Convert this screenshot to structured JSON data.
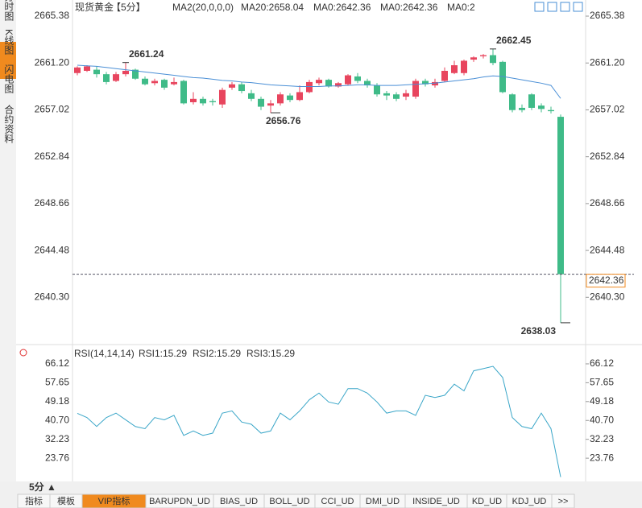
{
  "sidebar": [
    "分时图",
    "K线图",
    "闪电图",
    "合约资料"
  ],
  "header": {
    "name": "现货黄金",
    "period": "【5分】",
    "ma_setting": "MA2(20,0,0,0)",
    "ma20": "MA20:2658.04",
    "ma0a": "MA0:2642.36",
    "ma0b": "MA0:2642.36",
    "ma0c": "MA0:2"
  },
  "rsi_header": {
    "name": "RSI(14,14,14)",
    "rsi1": "RSI1:15.29",
    "rsi2": "RSI2:15.29",
    "rsi3": "RSI3:15.29"
  },
  "footer": {
    "period": "5分 ▲",
    "tabs": [
      "指标",
      "模板",
      "VIP指标",
      "BARUPDN_UD",
      "BIAS_UD",
      "BOLL_UD",
      "CCI_UD",
      "DMI_UD",
      "INSIDE_UD",
      "KD_UD",
      "KDJ_UD",
      ">>"
    ]
  },
  "chart_data": [
    {
      "type": "candlestick",
      "up_color": "#e8455e",
      "down_color": "#3fbb88",
      "open": [
        2660.3,
        2660.5,
        2660.6,
        2660.2,
        2659.6,
        2660.2,
        2660.6,
        2659.8,
        2659.4,
        2659.7,
        2659.3,
        2659.6,
        2657.7,
        2658.0,
        2657.8,
        2657.5,
        2659.0,
        2659.3,
        2658.5,
        2658.0,
        2657.4,
        2657.6,
        2658.3,
        2657.9,
        2658.6,
        2659.4,
        2659.7,
        2659.1,
        2659.3,
        2660.0,
        2659.6,
        2659.2,
        2658.5,
        2658.4,
        2658.2,
        2658.2,
        2659.6,
        2659.2,
        2659.6,
        2660.3,
        2660.3,
        2661.5,
        2661.8,
        2661.9,
        2661.3,
        2658.4,
        2657.2,
        2658.4,
        2657.4,
        2657.0,
        2656.4
      ],
      "high": [
        2660.9,
        2661.0,
        2660.9,
        2660.4,
        2660.4,
        2661.24,
        2660.7,
        2660.0,
        2659.8,
        2659.8,
        2659.9,
        2659.7,
        2658.6,
        2658.2,
        2658.0,
        2659.0,
        2659.5,
        2659.5,
        2658.8,
        2658.2,
        2657.9,
        2658.6,
        2658.5,
        2659.2,
        2659.7,
        2659.9,
        2659.8,
        2659.5,
        2660.2,
        2660.3,
        2659.8,
        2659.4,
        2658.7,
        2658.6,
        2658.8,
        2659.8,
        2659.8,
        2659.8,
        2660.8,
        2661.4,
        2661.5,
        2661.8,
        2662.0,
        2662.45,
        2661.4,
        2658.5,
        2657.5,
        2658.5,
        2657.6,
        2657.3,
        2656.6
      ],
      "low": [
        2660.1,
        2660.4,
        2659.9,
        2659.3,
        2659.5,
        2660.0,
        2659.7,
        2659.2,
        2659.2,
        2658.8,
        2659.2,
        2657.5,
        2657.5,
        2657.4,
        2657.4,
        2657.2,
        2658.8,
        2658.5,
        2657.8,
        2657.0,
        2656.76,
        2657.4,
        2657.7,
        2657.8,
        2658.5,
        2659.2,
        2659.0,
        2659.0,
        2659.2,
        2659.4,
        2659.0,
        2658.2,
        2657.9,
        2657.8,
        2657.9,
        2658.0,
        2659.1,
        2659.0,
        2659.5,
        2660.2,
        2660.1,
        2661.3,
        2661.6,
        2661.0,
        2658.5,
        2656.8,
        2656.8,
        2657.0,
        2656.8,
        2656.7,
        2638.03
      ],
      "close": [
        2660.8,
        2660.9,
        2660.2,
        2659.5,
        2660.2,
        2660.5,
        2659.8,
        2659.3,
        2659.6,
        2659.0,
        2659.5,
        2657.6,
        2658.0,
        2657.6,
        2657.7,
        2658.8,
        2659.3,
        2658.7,
        2658.0,
        2657.3,
        2657.6,
        2658.4,
        2657.9,
        2658.6,
        2659.5,
        2659.7,
        2659.1,
        2659.4,
        2660.1,
        2659.6,
        2659.2,
        2658.4,
        2658.3,
        2658.0,
        2658.5,
        2659.6,
        2659.3,
        2659.5,
        2660.5,
        2661.0,
        2661.4,
        2661.7,
        2661.9,
        2661.2,
        2658.6,
        2657.0,
        2657.0,
        2657.2,
        2657.1,
        2656.9,
        2642.36
      ],
      "labeled_highs": [
        5,
        43
      ],
      "labeled_lows": [
        20,
        50
      ],
      "ma": {
        "name": "MA20",
        "color": "#4a8fd6",
        "values": [
          2661.0,
          2660.95,
          2660.9,
          2660.8,
          2660.7,
          2660.6,
          2660.5,
          2660.4,
          2660.3,
          2660.2,
          2660.1,
          2660.0,
          2659.9,
          2659.85,
          2659.75,
          2659.65,
          2659.6,
          2659.5,
          2659.45,
          2659.35,
          2659.25,
          2659.2,
          2659.15,
          2659.1,
          2659.1,
          2659.1,
          2659.15,
          2659.15,
          2659.2,
          2659.25,
          2659.25,
          2659.2,
          2659.2,
          2659.2,
          2659.25,
          2659.3,
          2659.35,
          2659.4,
          2659.5,
          2659.6,
          2659.7,
          2659.8,
          2659.95,
          2660.05,
          2660.0,
          2659.85,
          2659.7,
          2659.55,
          2659.4,
          2659.2,
          2658.04
        ]
      },
      "last_line_color": "#f08a1e",
      "ylim": [
        2636.3,
        2666.1
      ],
      "yticks": [
        2665.38,
        {
          "value": 2661.2,
          "label": "2661.20"
        },
        2657.02,
        2652.84,
        2648.66,
        2644.48,
        {
          "value": 2640.3,
          "label": "2640.30"
        }
      ]
    },
    {
      "type": "line",
      "series": [
        {
          "name": "RSI1",
          "color": "#3aa6c8",
          "values": [
            43.9,
            42,
            38,
            42,
            44,
            41,
            38,
            37,
            42,
            41,
            43,
            34,
            36,
            34,
            35,
            44,
            45,
            40,
            39,
            35,
            36,
            44,
            41,
            45,
            50,
            53,
            49,
            48,
            55,
            55,
            53,
            49,
            44,
            45,
            45,
            43,
            52,
            51,
            52,
            57,
            54,
            63,
            64,
            65,
            60,
            42,
            38,
            37,
            44,
            37,
            15.29
          ]
        }
      ],
      "ylim": [
        14.4,
        69.0
      ],
      "yticks": [
        66.12,
        57.65,
        49.18,
        {
          "value": 40.7,
          "label": "40.70"
        },
        32.23,
        23.76
      ]
    }
  ]
}
